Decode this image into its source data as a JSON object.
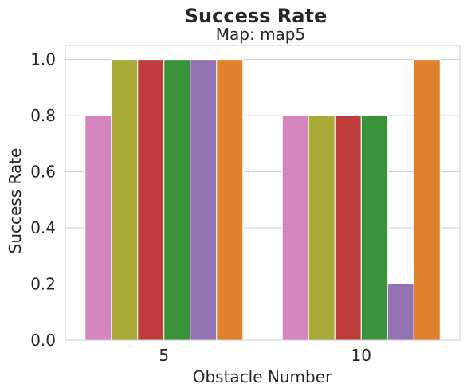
{
  "chart_data": {
    "type": "bar",
    "title": "Success Rate",
    "subtitle": "Map: map5",
    "xlabel": "Obstacle Number",
    "ylabel": "Success Rate",
    "categories": [
      "5",
      "10"
    ],
    "ylim": [
      0,
      1.05
    ],
    "yticks": [
      "0.0",
      "0.2",
      "0.4",
      "0.6",
      "0.8",
      "1.0"
    ],
    "grid": true,
    "legend": "none",
    "series": [
      {
        "color": "#d684bd",
        "values": [
          0.8,
          0.8
        ]
      },
      {
        "color": "#a9aa35",
        "values": [
          1.0,
          0.8
        ]
      },
      {
        "color": "#c03d3e",
        "values": [
          1.0,
          0.8
        ]
      },
      {
        "color": "#3a923a",
        "values": [
          1.0,
          0.8
        ]
      },
      {
        "color": "#9372b2",
        "values": [
          1.0,
          0.2
        ]
      },
      {
        "color": "#e1812c",
        "values": [
          1.0,
          1.0
        ]
      }
    ]
  }
}
